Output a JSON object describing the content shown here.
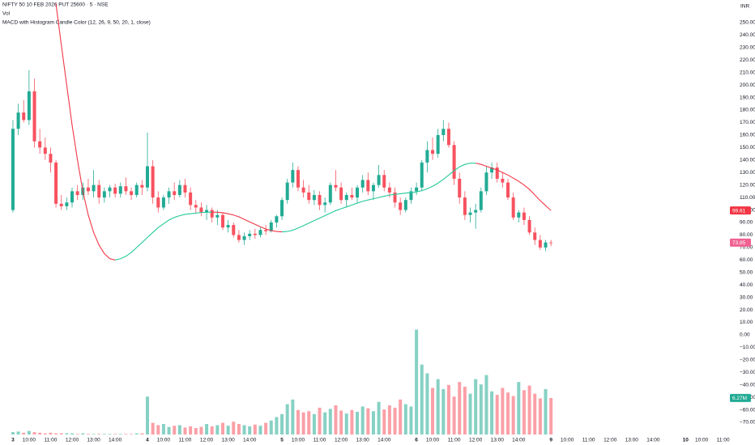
{
  "chart_data": {
    "type": "candlestick",
    "title": "NIFTY 50 10 FEB 2026 PUT 25600 · 5 · NSE",
    "subtitle": "Vol",
    "indicator": "MACD with Histogram Candle Color (12, 26, 9, 50, 20, 1, close)",
    "currency": "INR",
    "up_color": "#22ab94",
    "down_color": "#f7525f",
    "ma_up_color": "#26c99a",
    "ma_down_color": "#f23645",
    "price_badge_color": "#f06292",
    "volume_badge_color": "#22ab94",
    "grid": false,
    "xlim": [
      -2.4,
      133.1
    ],
    "ylim": [
      -79.7,
      268.1
    ],
    "vlim": [
      0,
      20
    ],
    "xticks": [
      {
        "value": 0,
        "label": "3"
      },
      {
        "value": 3,
        "label": "10:00"
      },
      {
        "value": 7,
        "label": "11:00"
      },
      {
        "value": 11,
        "label": "12:00"
      },
      {
        "value": 15,
        "label": "13:00"
      },
      {
        "value": 19,
        "label": "14:00"
      },
      {
        "value": 25,
        "label": "4"
      },
      {
        "value": 28,
        "label": "10:00"
      },
      {
        "value": 32,
        "label": "11:00"
      },
      {
        "value": 36,
        "label": "12:00"
      },
      {
        "value": 40,
        "label": "13:00"
      },
      {
        "value": 44,
        "label": "14:00"
      },
      {
        "value": 50,
        "label": "5"
      },
      {
        "value": 53,
        "label": "10:00"
      },
      {
        "value": 57,
        "label": "11:00"
      },
      {
        "value": 61,
        "label": "12:00"
      },
      {
        "value": 65,
        "label": "13:00"
      },
      {
        "value": 69,
        "label": "14:00"
      },
      {
        "value": 75,
        "label": "6"
      },
      {
        "value": 78,
        "label": "10:00"
      },
      {
        "value": 82,
        "label": "11:00"
      },
      {
        "value": 86,
        "label": "12:00"
      },
      {
        "value": 90,
        "label": "13:00"
      },
      {
        "value": 94,
        "label": "14:00"
      },
      {
        "value": 100,
        "label": "9"
      },
      {
        "value": 103,
        "label": "10:00"
      },
      {
        "value": 107,
        "label": "11:00"
      },
      {
        "value": 111,
        "label": "12:00"
      },
      {
        "value": 115,
        "label": "13:00"
      },
      {
        "value": 119,
        "label": "14:00"
      },
      {
        "value": 125,
        "label": "10"
      },
      {
        "value": 128,
        "label": "10:00"
      },
      {
        "value": 132,
        "label": "11:00"
      }
    ],
    "yticks": [
      {
        "value": 250,
        "label": "250.00"
      },
      {
        "value": 240,
        "label": "240.00"
      },
      {
        "value": 230,
        "label": "230.00"
      },
      {
        "value": 220,
        "label": "220.00"
      },
      {
        "value": 210,
        "label": "210.00"
      },
      {
        "value": 200,
        "label": "200.00"
      },
      {
        "value": 190,
        "label": "190.00"
      },
      {
        "value": 180,
        "label": "180.00"
      },
      {
        "value": 170,
        "label": "170.00"
      },
      {
        "value": 160,
        "label": "160.00"
      },
      {
        "value": 150,
        "label": "150.00"
      },
      {
        "value": 140,
        "label": "140.00"
      },
      {
        "value": 130,
        "label": "130.00"
      },
      {
        "value": 120,
        "label": "120.00"
      },
      {
        "value": 110,
        "label": "110.00"
      },
      {
        "value": 100,
        "label": "100.00"
      },
      {
        "value": 90,
        "label": "90.00"
      },
      {
        "value": 80,
        "label": "80.00"
      },
      {
        "value": 70,
        "label": "70.00"
      },
      {
        "value": 60,
        "label": "60.00"
      },
      {
        "value": 50,
        "label": "50.00"
      },
      {
        "value": 40,
        "label": "40.00"
      },
      {
        "value": 30,
        "label": "30.00"
      },
      {
        "value": 20,
        "label": "20.00"
      },
      {
        "value": 10,
        "label": "10.00"
      },
      {
        "value": 0,
        "label": "0.00"
      },
      {
        "value": -10,
        "label": "−10.00"
      },
      {
        "value": -20,
        "label": "−20.00"
      },
      {
        "value": -30,
        "label": "−30.00"
      },
      {
        "value": -40,
        "label": "−40.00"
      },
      {
        "value": -50,
        "label": "−50.00"
      },
      {
        "value": -60,
        "label": "−60.00"
      },
      {
        "value": -70,
        "label": "−70.00"
      }
    ],
    "ohlc": [
      [
        100,
        172,
        98,
        165
      ],
      [
        165,
        185,
        160,
        178
      ],
      [
        178,
        188,
        170,
        172
      ],
      [
        172,
        212,
        168,
        195
      ],
      [
        195,
        205,
        150,
        155
      ],
      [
        155,
        165,
        145,
        150
      ],
      [
        150,
        158,
        140,
        145
      ],
      [
        145,
        150,
        130,
        138
      ],
      [
        138,
        140,
        102,
        105
      ],
      [
        105,
        112,
        100,
        103
      ],
      [
        103,
        110,
        100,
        106
      ],
      [
        106,
        118,
        102,
        115
      ],
      [
        115,
        120,
        108,
        112
      ],
      [
        112,
        122,
        108,
        118
      ],
      [
        118,
        125,
        112,
        115
      ],
      [
        115,
        132,
        110,
        120
      ],
      [
        120,
        124,
        105,
        110
      ],
      [
        110,
        118,
        106,
        115
      ],
      [
        115,
        120,
        110,
        118
      ],
      [
        118,
        121,
        110,
        113
      ],
      [
        113,
        122,
        110,
        119
      ],
      [
        119,
        126,
        112,
        115
      ],
      [
        115,
        118,
        108,
        112
      ],
      [
        112,
        122,
        110,
        120
      ],
      [
        120,
        124,
        112,
        118
      ],
      [
        118,
        162,
        115,
        135
      ],
      [
        135,
        140,
        105,
        110
      ],
      [
        110,
        115,
        98,
        102
      ],
      [
        102,
        112,
        100,
        110
      ],
      [
        110,
        118,
        105,
        115
      ],
      [
        115,
        122,
        108,
        112
      ],
      [
        112,
        124,
        110,
        120
      ],
      [
        120,
        125,
        110,
        114
      ],
      [
        114,
        118,
        100,
        104
      ],
      [
        104,
        108,
        98,
        102
      ],
      [
        102,
        106,
        95,
        98
      ],
      [
        98,
        104,
        92,
        100
      ],
      [
        100,
        102,
        90,
        94
      ],
      [
        94,
        100,
        88,
        96
      ],
      [
        96,
        98,
        84,
        86
      ],
      [
        86,
        92,
        82,
        88
      ],
      [
        88,
        90,
        78,
        80
      ],
      [
        80,
        84,
        74,
        76
      ],
      [
        76,
        82,
        72,
        79
      ],
      [
        79,
        84,
        76,
        81
      ],
      [
        81,
        85,
        77,
        80
      ],
      [
        80,
        86,
        78,
        84
      ],
      [
        84,
        88,
        80,
        83
      ],
      [
        83,
        92,
        82,
        90
      ],
      [
        90,
        96,
        86,
        95
      ],
      [
        95,
        110,
        92,
        108
      ],
      [
        108,
        125,
        105,
        122
      ],
      [
        122,
        138,
        118,
        132
      ],
      [
        132,
        135,
        115,
        118
      ],
      [
        118,
        124,
        110,
        114
      ],
      [
        114,
        120,
        105,
        108
      ],
      [
        108,
        116,
        104,
        112
      ],
      [
        112,
        115,
        100,
        104
      ],
      [
        104,
        110,
        98,
        106
      ],
      [
        106,
        122,
        104,
        120
      ],
      [
        120,
        132,
        115,
        118
      ],
      [
        118,
        122,
        105,
        108
      ],
      [
        108,
        114,
        102,
        112
      ],
      [
        112,
        118,
        108,
        110
      ],
      [
        110,
        120,
        106,
        118
      ],
      [
        118,
        128,
        114,
        124
      ],
      [
        124,
        130,
        112,
        115
      ],
      [
        115,
        122,
        108,
        120
      ],
      [
        120,
        136,
        118,
        128
      ],
      [
        128,
        132,
        115,
        118
      ],
      [
        118,
        122,
        110,
        114
      ],
      [
        114,
        118,
        102,
        106
      ],
      [
        106,
        110,
        96,
        100
      ],
      [
        100,
        110,
        98,
        108
      ],
      [
        108,
        118,
        105,
        115
      ],
      [
        115,
        122,
        112,
        118
      ],
      [
        118,
        140,
        115,
        138
      ],
      [
        138,
        155,
        130,
        148
      ],
      [
        148,
        158,
        140,
        145
      ],
      [
        145,
        165,
        142,
        160
      ],
      [
        160,
        172,
        155,
        165
      ],
      [
        165,
        170,
        150,
        152
      ],
      [
        152,
        155,
        120,
        125
      ],
      [
        125,
        130,
        105,
        110
      ],
      [
        110,
        115,
        92,
        96
      ],
      [
        96,
        102,
        90,
        98
      ],
      [
        98,
        105,
        85,
        100
      ],
      [
        100,
        118,
        98,
        115
      ],
      [
        115,
        135,
        112,
        130
      ],
      [
        130,
        138,
        125,
        134
      ],
      [
        134,
        138,
        122,
        125
      ],
      [
        125,
        130,
        118,
        122
      ],
      [
        122,
        125,
        108,
        110
      ],
      [
        110,
        114,
        92,
        94
      ],
      [
        94,
        100,
        90,
        98
      ],
      [
        98,
        102,
        88,
        92
      ],
      [
        92,
        95,
        80,
        82
      ],
      [
        82,
        86,
        72,
        76
      ],
      [
        76,
        80,
        68,
        70
      ],
      [
        70,
        76,
        67,
        74
      ],
      [
        74,
        76,
        71,
        73.85
      ]
    ],
    "volume": [
      0.4,
      0.5,
      0.3,
      0.6,
      0.4,
      0.3,
      0.2,
      0.3,
      0.2,
      0.2,
      0.2,
      0.2,
      0.1,
      0.2,
      0.1,
      0.1,
      0.1,
      0.1,
      0.1,
      0.1,
      0.1,
      0.1,
      0.1,
      0.2,
      0.2,
      6.5,
      2.0,
      1.6,
      1.8,
      1.3,
      1.5,
      1.6,
      1.2,
      1.4,
      1.1,
      1.3,
      1.8,
      1.4,
      1.6,
      2.0,
      1.5,
      2.2,
      1.8,
      1.6,
      1.4,
      1.7,
      1.5,
      2.0,
      2.4,
      3.0,
      3.5,
      5.2,
      6.0,
      4.2,
      3.8,
      4.0,
      3.5,
      4.6,
      3.8,
      4.4,
      5.0,
      4.1,
      3.6,
      4.2,
      3.9,
      4.8,
      4.5,
      4.0,
      5.6,
      4.3,
      5.0,
      4.6,
      6.0,
      5.2,
      4.8,
      18.0,
      12.0,
      10.5,
      8.0,
      9.5,
      7.8,
      8.5,
      6.5,
      9.0,
      8.2,
      7.0,
      9.5,
      8.6,
      10.2,
      7.4,
      6.8,
      8.0,
      7.2,
      6.6,
      9.0,
      7.6,
      8.4,
      7.0,
      6.2,
      7.8,
      6.27
    ],
    "last_volume_label": "6.27M",
    "ma": [
      null,
      null,
      null,
      null,
      null,
      null,
      null,
      null,
      265,
      232,
      200,
      168,
      140,
      115,
      96,
      82,
      72,
      65,
      61,
      60,
      61,
      63,
      66,
      70,
      74,
      78,
      82,
      86,
      89,
      92,
      94,
      95.5,
      96.5,
      97,
      97.5,
      98,
      98.2,
      98.3,
      98.2,
      97.8,
      97,
      96,
      94.5,
      92.5,
      90.5,
      88.5,
      86.5,
      84.8,
      83.5,
      82.8,
      82.5,
      82.8,
      83.8,
      85.5,
      87.5,
      89.5,
      91.5,
      93.5,
      95.5,
      97.5,
      99.5,
      101,
      102.5,
      104,
      105.5,
      107,
      108,
      109,
      110,
      111,
      112,
      112.5,
      113,
      113.5,
      114,
      114.5,
      115.5,
      117,
      119,
      121.5,
      124.5,
      128,
      131.5,
      134.5,
      136.5,
      137.5,
      137.5,
      136.5,
      135,
      133.5,
      132,
      130,
      128,
      125.5,
      123,
      120,
      116.5,
      112,
      107.5,
      103.5,
      99.61
    ]
  }
}
